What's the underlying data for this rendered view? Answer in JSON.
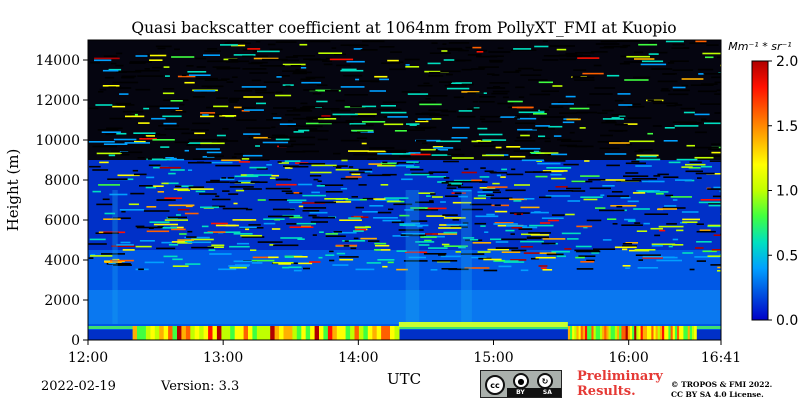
{
  "chart_data": {
    "type": "heatmap",
    "title": "Quasi backscatter coefficient at 1064nm from PollyXT_FMI at Kuopio",
    "xlabel": "UTC",
    "ylabel": "Height (m)",
    "x_ticks": [
      "12:00",
      "13:00",
      "14:00",
      "15:00",
      "16:00",
      "16:41"
    ],
    "x_tick_hours": [
      0,
      1,
      2,
      3,
      4,
      4.683
    ],
    "xlim_hours": [
      0,
      4.683
    ],
    "y_ticks": [
      0,
      2000,
      4000,
      6000,
      8000,
      10000,
      12000,
      14000
    ],
    "ylim": [
      0,
      15000
    ],
    "colorbar": {
      "label": "Mm⁻¹ * sr⁻¹",
      "ticks": [
        "0.0",
        "0.5",
        "1.0",
        "1.5",
        "2.0"
      ],
      "tick_values": [
        0,
        0.5,
        1.0,
        1.5,
        2.0
      ],
      "range": [
        0,
        2.0
      ],
      "colormap": [
        "#0000c8",
        "#0050e0",
        "#00a0ff",
        "#00e0c0",
        "#40ff40",
        "#c0ff00",
        "#ffff00",
        "#ffb000",
        "#ff6000",
        "#ff1000",
        "#b00000"
      ]
    },
    "noise_above_m": 5000,
    "aerosol_layer_top_m": 4500,
    "strong_low_layer_m": [
      0,
      700
    ],
    "strong_low_layer_hours": [
      [
        0.33,
        2.3
      ],
      [
        3.55,
        4.5
      ]
    ]
  },
  "footer": {
    "date": "2022-02-19",
    "version": "Version: 3.3",
    "preliminary_line1": "Preliminary",
    "preliminary_line2": "Results.",
    "copyright_line1": "© TROPOS & FMI 2022.",
    "copyright_line2": "CC BY SA 4.0 License.",
    "license_badge": {
      "cc": "cc",
      "by": "BY",
      "sa": "SA"
    }
  },
  "icons": [
    "cc-license-icon",
    "attribution-icon",
    "share-alike-icon"
  ]
}
